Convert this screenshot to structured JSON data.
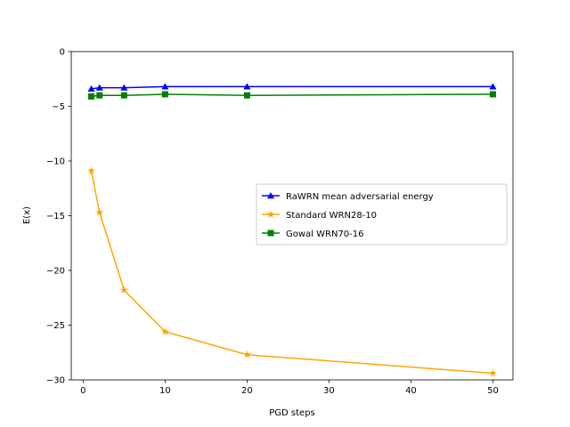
{
  "chart_data": {
    "type": "line",
    "xlabel": "PGD steps",
    "ylabel": "E(x)",
    "xlim": [
      -1.45,
      52.45
    ],
    "ylim": [
      -30,
      0
    ],
    "xticks": [
      0,
      10,
      20,
      30,
      40,
      50
    ],
    "yticks": [
      0,
      -5,
      -10,
      -15,
      -20,
      -25,
      -30
    ],
    "xtick_labels": [
      "0",
      "10",
      "20",
      "30",
      "40",
      "50"
    ],
    "ytick_labels": [
      "0",
      "−5",
      "−10",
      "−15",
      "−20",
      "−25",
      "−30"
    ],
    "grid": false,
    "legend_position": "center-right",
    "x": [
      1,
      2,
      5,
      10,
      20,
      50
    ],
    "series": [
      {
        "name": "RaWRN mean adversarial energy",
        "color": "#0000ff",
        "marker": "triangle",
        "values": [
          -3.4,
          -3.3,
          -3.3,
          -3.2,
          -3.2,
          -3.2
        ]
      },
      {
        "name": "Standard WRN28-10",
        "color": "#ffa500",
        "marker": "star",
        "values": [
          -10.9,
          -14.7,
          -21.8,
          -25.6,
          -27.7,
          -29.4
        ]
      },
      {
        "name": "Gowal WRN70-16",
        "color": "#008000",
        "marker": "square",
        "values": [
          -4.1,
          -4.0,
          -4.0,
          -3.9,
          -4.0,
          -3.9
        ]
      }
    ]
  }
}
